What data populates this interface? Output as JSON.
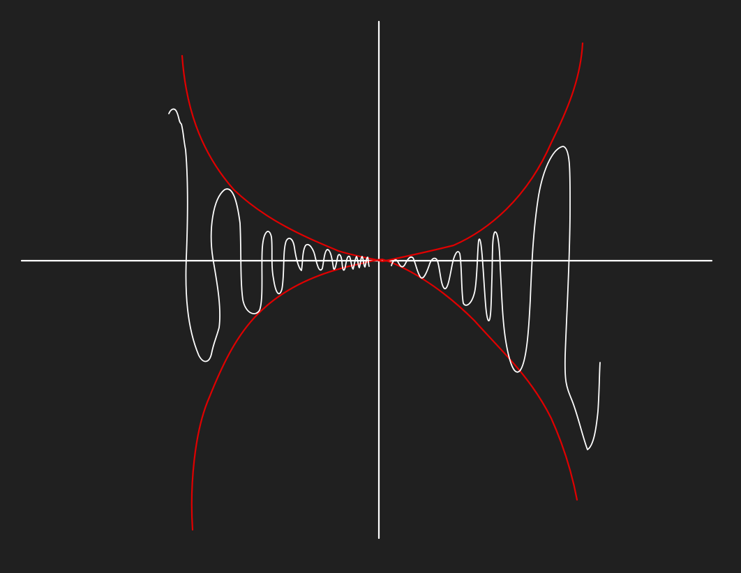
{
  "canvas": {
    "background": "#202020"
  },
  "colors": {
    "axis": "#ffffff",
    "envelope": "#e00000",
    "oscillation": "#ffffff"
  },
  "drawing": {
    "axes": [
      "x-axis",
      "y-axis"
    ],
    "envelope_curves": [
      "upper-envelope",
      "lower-envelope"
    ],
    "oscillation_curves": [
      "left-oscillation",
      "right-oscillation"
    ]
  }
}
